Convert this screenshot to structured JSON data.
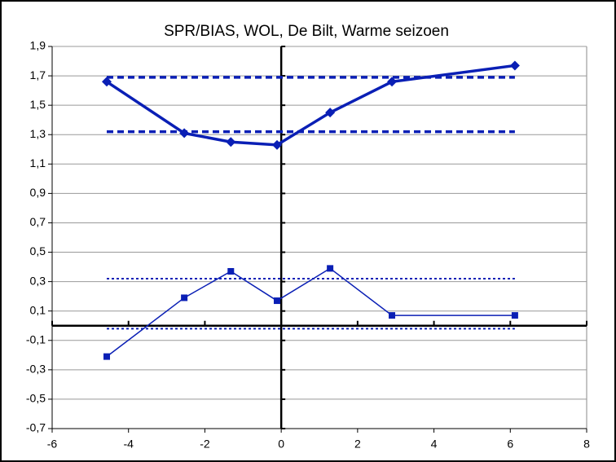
{
  "chart_data": {
    "type": "line",
    "title": "SPR/BIAS, WOL, De Bilt, Warme seizoen",
    "xlim": [
      -6,
      8
    ],
    "xticks": [
      -6,
      -4,
      -2,
      0,
      2,
      4,
      6,
      8
    ],
    "ylim": [
      -0.7,
      1.9
    ],
    "yticks": [
      {
        "value": -0.7,
        "label": "-0,7"
      },
      {
        "value": -0.5,
        "label": "-0,5"
      },
      {
        "value": -0.3,
        "label": "-0,3"
      },
      {
        "value": -0.1,
        "label": "-0,1"
      },
      {
        "value": 0.1,
        "label": "0,1"
      },
      {
        "value": 0.3,
        "label": "0,3"
      },
      {
        "value": 0.5,
        "label": "0,5"
      },
      {
        "value": 0.7,
        "label": "0,7"
      },
      {
        "value": 0.9,
        "label": "0,9"
      },
      {
        "value": 1.1,
        "label": "1,1"
      },
      {
        "value": 1.3,
        "label": "1,3"
      },
      {
        "value": 1.5,
        "label": "1,5"
      },
      {
        "value": 1.7,
        "label": "1,7"
      },
      {
        "value": 1.9,
        "label": "1,9"
      }
    ],
    "grid": true,
    "axes_cross_at": [
      0,
      0
    ],
    "series": [
      {
        "color": "#0a1fb5",
        "width": 3.5,
        "marker": "diamond",
        "x": [
          -4.57,
          -2.54,
          -1.32,
          -0.11,
          1.28,
          2.9,
          6.12
        ],
        "values": [
          1.66,
          1.31,
          1.25,
          1.23,
          1.45,
          1.66,
          1.77
        ]
      },
      {
        "color": "#0a1fb5",
        "width": 1.5,
        "marker": "square",
        "x": [
          -4.57,
          -2.54,
          -1.32,
          -0.11,
          1.28,
          2.9,
          6.12
        ],
        "values": [
          -0.21,
          0.19,
          0.37,
          0.17,
          0.39,
          0.07,
          0.07
        ]
      },
      {
        "color": "#0a1fb5",
        "width": 3.5,
        "dash": "8 5",
        "x": [
          -4.57,
          6.12
        ],
        "values": [
          1.69,
          1.69
        ]
      },
      {
        "color": "#0a1fb5",
        "width": 3.5,
        "dash": "8 5",
        "x": [
          -4.57,
          6.12
        ],
        "values": [
          1.32,
          1.32
        ]
      },
      {
        "color": "#0a1fb5",
        "width": 2,
        "dash": "3 3",
        "x": [
          -4.57,
          6.12
        ],
        "values": [
          0.32,
          0.32
        ]
      },
      {
        "color": "#0a1fb5",
        "width": 2,
        "dash": "3 3",
        "x": [
          -4.57,
          6.12
        ],
        "values": [
          -0.02,
          -0.02
        ]
      }
    ]
  }
}
